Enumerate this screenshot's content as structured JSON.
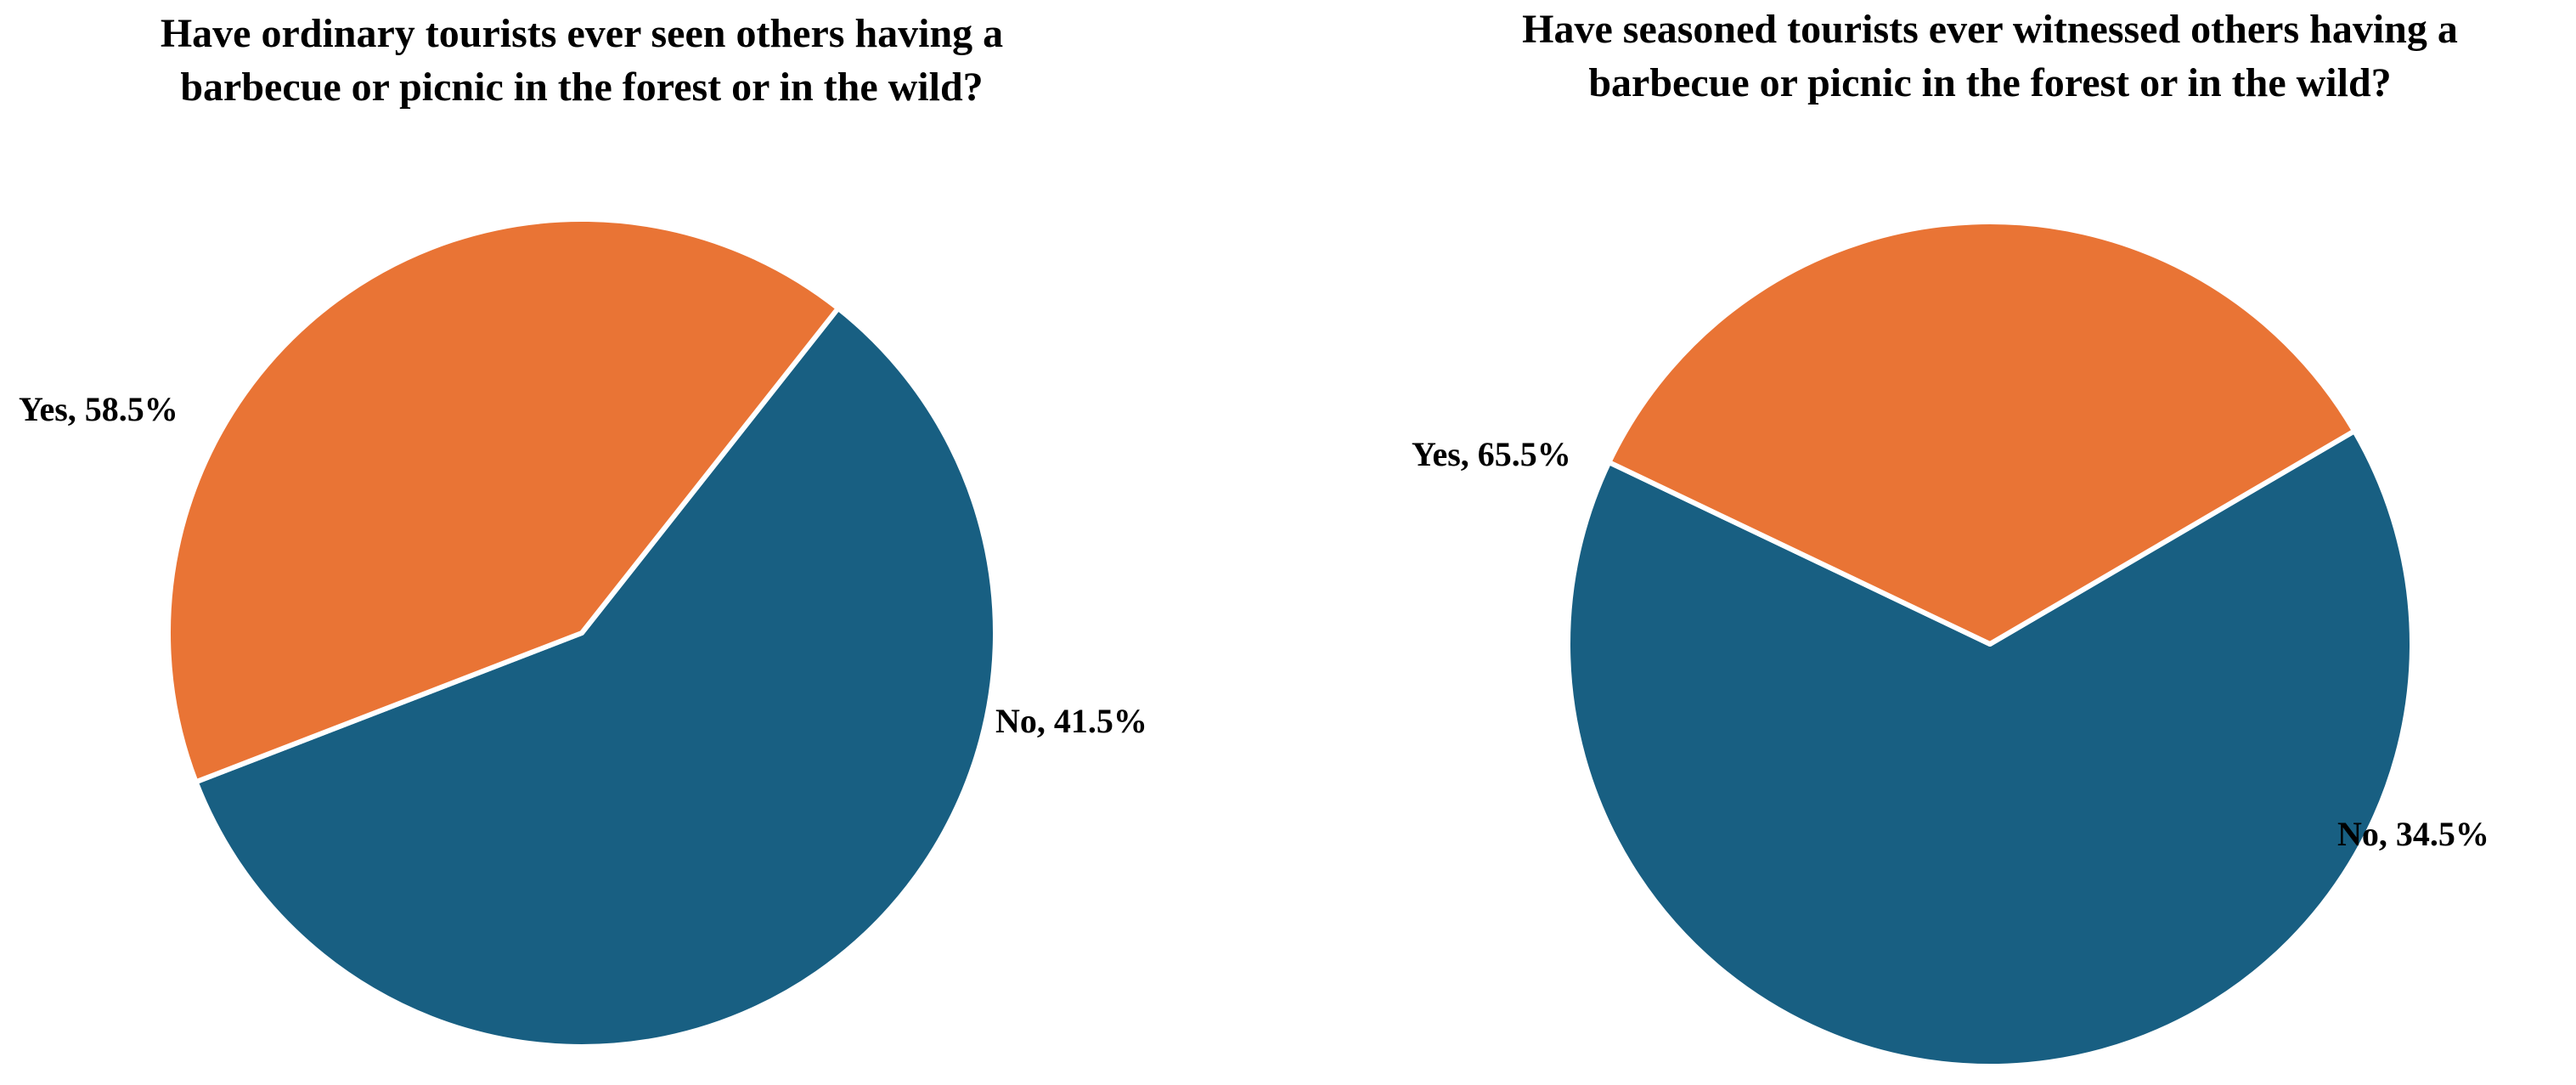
{
  "chart_data": [
    {
      "type": "pie",
      "title_lines": [
        "Have ordinary tourists ever seen others having a",
        "barbecue or picnic in the forest or in the wild?"
      ],
      "slices": [
        {
          "label": "Yes",
          "value": 58.5,
          "display": "Yes, 58.5%",
          "color": "#185f82"
        },
        {
          "label": "No",
          "value": 41.5,
          "display": "No, 41.5%",
          "color": "#e97435"
        }
      ]
    },
    {
      "type": "pie",
      "title_lines": [
        "Have seasoned tourists ever witnessed others having a",
        "barbecue or picnic in the forest or in the wild?"
      ],
      "slices": [
        {
          "label": "Yes",
          "value": 65.5,
          "display": "Yes, 65.5%",
          "color": "#185f82"
        },
        {
          "label": "No",
          "value": 34.5,
          "display": "No, 34.5%",
          "color": "#e97435"
        }
      ]
    }
  ]
}
